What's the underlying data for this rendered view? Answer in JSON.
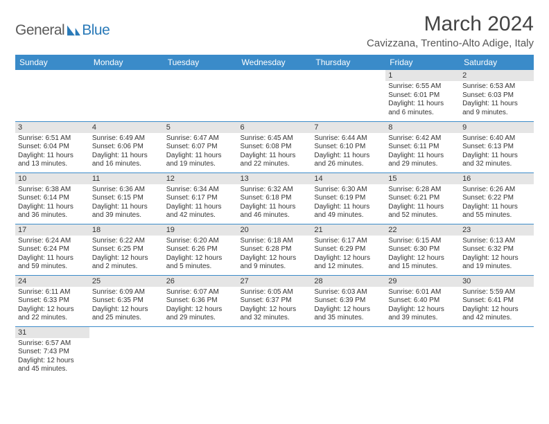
{
  "brand": {
    "part1": "General",
    "part2": "Blue"
  },
  "title": "March 2024",
  "location": "Cavizzana, Trentino-Alto Adige, Italy",
  "colors": {
    "header_bg": "#3a8bc9",
    "header_text": "#ffffff",
    "daynum_bg": "#e5e5e5",
    "row_border": "#3a8bc9",
    "logo_blue": "#2a7ab8"
  },
  "weekdays": [
    "Sunday",
    "Monday",
    "Tuesday",
    "Wednesday",
    "Thursday",
    "Friday",
    "Saturday"
  ],
  "weeks": [
    [
      {
        "day": "",
        "sunrise": "",
        "sunset": "",
        "daylight": ""
      },
      {
        "day": "",
        "sunrise": "",
        "sunset": "",
        "daylight": ""
      },
      {
        "day": "",
        "sunrise": "",
        "sunset": "",
        "daylight": ""
      },
      {
        "day": "",
        "sunrise": "",
        "sunset": "",
        "daylight": ""
      },
      {
        "day": "",
        "sunrise": "",
        "sunset": "",
        "daylight": ""
      },
      {
        "day": "1",
        "sunrise": "Sunrise: 6:55 AM",
        "sunset": "Sunset: 6:01 PM",
        "daylight": "Daylight: 11 hours and 6 minutes."
      },
      {
        "day": "2",
        "sunrise": "Sunrise: 6:53 AM",
        "sunset": "Sunset: 6:03 PM",
        "daylight": "Daylight: 11 hours and 9 minutes."
      }
    ],
    [
      {
        "day": "3",
        "sunrise": "Sunrise: 6:51 AM",
        "sunset": "Sunset: 6:04 PM",
        "daylight": "Daylight: 11 hours and 13 minutes."
      },
      {
        "day": "4",
        "sunrise": "Sunrise: 6:49 AM",
        "sunset": "Sunset: 6:06 PM",
        "daylight": "Daylight: 11 hours and 16 minutes."
      },
      {
        "day": "5",
        "sunrise": "Sunrise: 6:47 AM",
        "sunset": "Sunset: 6:07 PM",
        "daylight": "Daylight: 11 hours and 19 minutes."
      },
      {
        "day": "6",
        "sunrise": "Sunrise: 6:45 AM",
        "sunset": "Sunset: 6:08 PM",
        "daylight": "Daylight: 11 hours and 22 minutes."
      },
      {
        "day": "7",
        "sunrise": "Sunrise: 6:44 AM",
        "sunset": "Sunset: 6:10 PM",
        "daylight": "Daylight: 11 hours and 26 minutes."
      },
      {
        "day": "8",
        "sunrise": "Sunrise: 6:42 AM",
        "sunset": "Sunset: 6:11 PM",
        "daylight": "Daylight: 11 hours and 29 minutes."
      },
      {
        "day": "9",
        "sunrise": "Sunrise: 6:40 AM",
        "sunset": "Sunset: 6:13 PM",
        "daylight": "Daylight: 11 hours and 32 minutes."
      }
    ],
    [
      {
        "day": "10",
        "sunrise": "Sunrise: 6:38 AM",
        "sunset": "Sunset: 6:14 PM",
        "daylight": "Daylight: 11 hours and 36 minutes."
      },
      {
        "day": "11",
        "sunrise": "Sunrise: 6:36 AM",
        "sunset": "Sunset: 6:15 PM",
        "daylight": "Daylight: 11 hours and 39 minutes."
      },
      {
        "day": "12",
        "sunrise": "Sunrise: 6:34 AM",
        "sunset": "Sunset: 6:17 PM",
        "daylight": "Daylight: 11 hours and 42 minutes."
      },
      {
        "day": "13",
        "sunrise": "Sunrise: 6:32 AM",
        "sunset": "Sunset: 6:18 PM",
        "daylight": "Daylight: 11 hours and 46 minutes."
      },
      {
        "day": "14",
        "sunrise": "Sunrise: 6:30 AM",
        "sunset": "Sunset: 6:19 PM",
        "daylight": "Daylight: 11 hours and 49 minutes."
      },
      {
        "day": "15",
        "sunrise": "Sunrise: 6:28 AM",
        "sunset": "Sunset: 6:21 PM",
        "daylight": "Daylight: 11 hours and 52 minutes."
      },
      {
        "day": "16",
        "sunrise": "Sunrise: 6:26 AM",
        "sunset": "Sunset: 6:22 PM",
        "daylight": "Daylight: 11 hours and 55 minutes."
      }
    ],
    [
      {
        "day": "17",
        "sunrise": "Sunrise: 6:24 AM",
        "sunset": "Sunset: 6:24 PM",
        "daylight": "Daylight: 11 hours and 59 minutes."
      },
      {
        "day": "18",
        "sunrise": "Sunrise: 6:22 AM",
        "sunset": "Sunset: 6:25 PM",
        "daylight": "Daylight: 12 hours and 2 minutes."
      },
      {
        "day": "19",
        "sunrise": "Sunrise: 6:20 AM",
        "sunset": "Sunset: 6:26 PM",
        "daylight": "Daylight: 12 hours and 5 minutes."
      },
      {
        "day": "20",
        "sunrise": "Sunrise: 6:18 AM",
        "sunset": "Sunset: 6:28 PM",
        "daylight": "Daylight: 12 hours and 9 minutes."
      },
      {
        "day": "21",
        "sunrise": "Sunrise: 6:17 AM",
        "sunset": "Sunset: 6:29 PM",
        "daylight": "Daylight: 12 hours and 12 minutes."
      },
      {
        "day": "22",
        "sunrise": "Sunrise: 6:15 AM",
        "sunset": "Sunset: 6:30 PM",
        "daylight": "Daylight: 12 hours and 15 minutes."
      },
      {
        "day": "23",
        "sunrise": "Sunrise: 6:13 AM",
        "sunset": "Sunset: 6:32 PM",
        "daylight": "Daylight: 12 hours and 19 minutes."
      }
    ],
    [
      {
        "day": "24",
        "sunrise": "Sunrise: 6:11 AM",
        "sunset": "Sunset: 6:33 PM",
        "daylight": "Daylight: 12 hours and 22 minutes."
      },
      {
        "day": "25",
        "sunrise": "Sunrise: 6:09 AM",
        "sunset": "Sunset: 6:35 PM",
        "daylight": "Daylight: 12 hours and 25 minutes."
      },
      {
        "day": "26",
        "sunrise": "Sunrise: 6:07 AM",
        "sunset": "Sunset: 6:36 PM",
        "daylight": "Daylight: 12 hours and 29 minutes."
      },
      {
        "day": "27",
        "sunrise": "Sunrise: 6:05 AM",
        "sunset": "Sunset: 6:37 PM",
        "daylight": "Daylight: 12 hours and 32 minutes."
      },
      {
        "day": "28",
        "sunrise": "Sunrise: 6:03 AM",
        "sunset": "Sunset: 6:39 PM",
        "daylight": "Daylight: 12 hours and 35 minutes."
      },
      {
        "day": "29",
        "sunrise": "Sunrise: 6:01 AM",
        "sunset": "Sunset: 6:40 PM",
        "daylight": "Daylight: 12 hours and 39 minutes."
      },
      {
        "day": "30",
        "sunrise": "Sunrise: 5:59 AM",
        "sunset": "Sunset: 6:41 PM",
        "daylight": "Daylight: 12 hours and 42 minutes."
      }
    ],
    [
      {
        "day": "31",
        "sunrise": "Sunrise: 6:57 AM",
        "sunset": "Sunset: 7:43 PM",
        "daylight": "Daylight: 12 hours and 45 minutes."
      },
      {
        "day": "",
        "sunrise": "",
        "sunset": "",
        "daylight": ""
      },
      {
        "day": "",
        "sunrise": "",
        "sunset": "",
        "daylight": ""
      },
      {
        "day": "",
        "sunrise": "",
        "sunset": "",
        "daylight": ""
      },
      {
        "day": "",
        "sunrise": "",
        "sunset": "",
        "daylight": ""
      },
      {
        "day": "",
        "sunrise": "",
        "sunset": "",
        "daylight": ""
      },
      {
        "day": "",
        "sunrise": "",
        "sunset": "",
        "daylight": ""
      }
    ]
  ]
}
